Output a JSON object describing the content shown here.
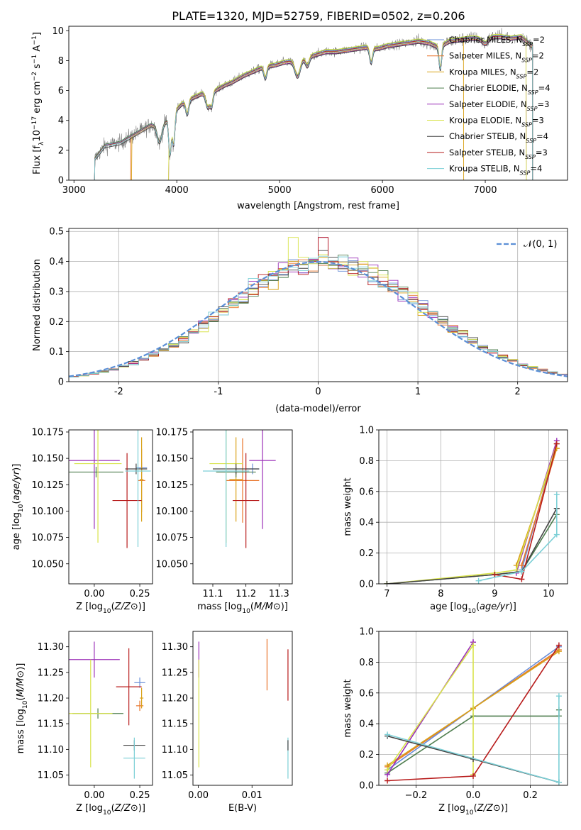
{
  "title": "PLATE=1320, MJD=52759, FIBERID=0502, z=0.206",
  "models": [
    {
      "name": "Chabrier MILES",
      "nssp": "2",
      "color": "#6a8fd8"
    },
    {
      "name": "Salpeter MILES",
      "nssp": "2",
      "color": "#e8742a"
    },
    {
      "name": "Kroupa MILES",
      "nssp": "2",
      "color": "#d9a21a"
    },
    {
      "name": "Chabrier ELODIE",
      "nssp": "4",
      "color": "#4e7d4e"
    },
    {
      "name": "Salpeter ELODIE",
      "nssp": "3",
      "color": "#9b30b8"
    },
    {
      "name": "Kroupa ELODIE",
      "nssp": "3",
      "color": "#d8e34a"
    },
    {
      "name": "Chabrier STELIB",
      "nssp": "4",
      "color": "#444444"
    },
    {
      "name": "Salpeter STELIB",
      "nssp": "3",
      "color": "#b81c1c"
    },
    {
      "name": "Kroupa STELIB",
      "nssp": "4",
      "color": "#7ccfd6"
    }
  ],
  "chart_data": [
    {
      "type": "line",
      "id": "spectrum",
      "xlabel": "wavelength [Angstrom, rest frame]",
      "ylabel_parts": [
        "Flux [f",
        "λ",
        "10",
        "−17",
        " erg cm",
        "−2",
        " s",
        "−1",
        " A",
        "−1",
        "]"
      ],
      "xlim": [
        2950,
        7800
      ],
      "ylim": [
        0,
        10.3
      ],
      "xticks": [
        3000,
        4000,
        5000,
        6000,
        7000
      ],
      "yticks": [
        0,
        2,
        4,
        6,
        8,
        10
      ],
      "legend_position": "right",
      "data_color": "#808080",
      "continuum": [
        [
          3200,
          1.4
        ],
        [
          3300,
          2.3
        ],
        [
          3450,
          2.5
        ],
        [
          3550,
          2.9
        ],
        [
          3650,
          3.3
        ],
        [
          3750,
          3.7
        ],
        [
          3850,
          3.5
        ],
        [
          3950,
          4.4
        ],
        [
          4050,
          5.1
        ],
        [
          4150,
          5.5
        ],
        [
          4250,
          5.8
        ],
        [
          4350,
          5.9
        ],
        [
          4450,
          6.3
        ],
        [
          4550,
          6.6
        ],
        [
          4650,
          7.0
        ],
        [
          4750,
          7.3
        ],
        [
          4850,
          7.6
        ],
        [
          4950,
          7.7
        ],
        [
          5050,
          7.9
        ],
        [
          5150,
          8.0
        ],
        [
          5250,
          8.2
        ],
        [
          5350,
          8.4
        ],
        [
          5450,
          8.6
        ],
        [
          5550,
          8.6
        ],
        [
          5650,
          8.7
        ],
        [
          5750,
          8.8
        ],
        [
          5850,
          8.9
        ],
        [
          5950,
          8.8
        ],
        [
          6050,
          9.0
        ],
        [
          6150,
          9.1
        ],
        [
          6250,
          9.2
        ],
        [
          6350,
          9.3
        ],
        [
          6450,
          9.2
        ],
        [
          6550,
          8.9
        ],
        [
          6650,
          9.3
        ],
        [
          6750,
          9.4
        ],
        [
          6850,
          9.5
        ],
        [
          6950,
          9.5
        ],
        [
          7050,
          9.6
        ],
        [
          7150,
          9.6
        ],
        [
          7250,
          9.5
        ],
        [
          7350,
          9.6
        ],
        [
          7450,
          9.0
        ]
      ],
      "features": [
        [
          3830,
          -1.0,
          20
        ],
        [
          3934,
          -2.6,
          12
        ],
        [
          3969,
          -2.2,
          12
        ],
        [
          4102,
          -0.9,
          14
        ],
        [
          4304,
          -1.0,
          20
        ],
        [
          4340,
          -0.8,
          12
        ],
        [
          4861,
          -0.8,
          14
        ],
        [
          5175,
          -1.1,
          26
        ],
        [
          5270,
          -0.6,
          18
        ],
        [
          5890,
          -1.0,
          14
        ],
        [
          6563,
          -1.5,
          12
        ],
        [
          7000,
          -0.4,
          30
        ]
      ]
    },
    {
      "type": "bar",
      "id": "residuals",
      "xlabel": "(data-model)/error",
      "ylabel": "Normed distribution",
      "xlim": [
        -2.5,
        2.5
      ],
      "ylim": [
        0,
        0.51
      ],
      "xticks": [
        -2,
        -1,
        0,
        1,
        2
      ],
      "yticks": [
        0,
        0.1,
        0.2,
        0.3,
        0.4,
        0.5
      ],
      "grid": true,
      "legend_position": "top-right",
      "reference_label": "N(0, 1)",
      "reference_color": "#5b8fd6",
      "bin_width": 0.1
    },
    {
      "type": "scatter",
      "id": "age-vs-metallicity",
      "xlabel": "Z [log10(Z/Z⊙)]",
      "ylabel": "age [log10(age/yr)]",
      "xlim": [
        -0.14,
        0.32
      ],
      "ylim": [
        10.031,
        10.177
      ],
      "xticks": [
        0.0,
        0.25
      ],
      "xtick_labels": [
        "0.00",
        "0.25"
      ],
      "yticks": [
        10.05,
        10.075,
        10.1,
        10.125,
        10.15,
        10.175
      ],
      "ytick_labels": [
        "10.050",
        "10.075",
        "10.100",
        "10.125",
        "10.150",
        "10.175"
      ],
      "points": [
        {
          "model": 0,
          "x": 0.26,
          "y": 10.141,
          "xerr": 0.03,
          "yerr": 0.005
        },
        {
          "model": 1,
          "x": 0.26,
          "y": 10.129,
          "xerr": 0.02,
          "yerr": 0.03
        },
        {
          "model": 2,
          "x": 0.26,
          "y": 10.13,
          "xerr": 0.01,
          "yerr": 0.04
        },
        {
          "model": 3,
          "x": 0.01,
          "y": 10.137,
          "xerr": 0.15,
          "yerr": 0.005
        },
        {
          "model": 4,
          "x": 0.0,
          "y": 10.148,
          "xerr": 0.14,
          "yerr": 0.065
        },
        {
          "model": 5,
          "x": 0.02,
          "y": 10.145,
          "xerr": 0.13,
          "yerr": 0.075
        },
        {
          "model": 6,
          "x": 0.23,
          "y": 10.14,
          "xerr": 0.06,
          "yerr": 0.005
        },
        {
          "model": 7,
          "x": 0.18,
          "y": 10.11,
          "xerr": 0.08,
          "yerr": 0.045
        },
        {
          "model": 8,
          "x": 0.24,
          "y": 10.138,
          "xerr": 0.07,
          "yerr": 0.072
        }
      ]
    },
    {
      "type": "scatter",
      "id": "age-vs-mass",
      "xlabel": "mass [log10(M/M⊙)]",
      "ylabel": "",
      "xlim": [
        11.04,
        11.34
      ],
      "ylim": [
        10.031,
        10.177
      ],
      "xticks": [
        11.1,
        11.2,
        11.3
      ],
      "xtick_labels": [
        "11.1",
        "11.2",
        "11.3"
      ],
      "yticks": [
        10.05,
        10.075,
        10.1,
        10.125,
        10.15,
        10.175
      ],
      "ytick_labels": [
        "10.050",
        "10.075",
        "10.100",
        "10.125",
        "10.150",
        "10.175"
      ],
      "points": [
        {
          "model": 0,
          "x": 11.22,
          "y": 10.14,
          "xerr": 0.02,
          "yerr": 0.005
        },
        {
          "model": 1,
          "x": 11.19,
          "y": 10.129,
          "xerr": 0.05,
          "yerr": 0.04
        },
        {
          "model": 2,
          "x": 11.17,
          "y": 10.13,
          "xerr": 0.02,
          "yerr": 0.04
        },
        {
          "model": 3,
          "x": 11.17,
          "y": 10.137,
          "xerr": 0.06,
          "yerr": 0.005
        },
        {
          "model": 4,
          "x": 11.25,
          "y": 10.148,
          "xerr": 0.04,
          "yerr": 0.065
        },
        {
          "model": 5,
          "x": 11.14,
          "y": 10.145,
          "xerr": 0.05,
          "yerr": 0.075
        },
        {
          "model": 6,
          "x": 11.17,
          "y": 10.14,
          "xerr": 0.07,
          "yerr": 0.005
        },
        {
          "model": 7,
          "x": 11.2,
          "y": 10.11,
          "xerr": 0.04,
          "yerr": 0.045
        },
        {
          "model": 8,
          "x": 11.14,
          "y": 10.138,
          "xerr": 0.07,
          "yerr": 0.072
        }
      ]
    },
    {
      "type": "line",
      "id": "weight-vs-age",
      "xlabel": "age [log10(age/yr)]",
      "ylabel": "mass weight",
      "xlim": [
        6.85,
        10.35
      ],
      "ylim": [
        0,
        1.0
      ],
      "xticks": [
        7,
        8,
        9,
        10
      ],
      "xtick_labels": [
        "7",
        "8",
        "9",
        "10"
      ],
      "yticks": [
        0,
        0.2,
        0.4,
        0.6,
        0.8,
        1.0
      ],
      "ytick_labels": [
        "0.0",
        "0.2",
        "0.4",
        "0.6",
        "0.8",
        "1.0"
      ],
      "grid": true,
      "series": [
        {
          "model": 0,
          "x": [
            9.5,
            10.15
          ],
          "y": [
            0.09,
            0.91
          ]
        },
        {
          "model": 1,
          "x": [
            9.5,
            10.15
          ],
          "y": [
            0.12,
            0.88
          ]
        },
        {
          "model": 2,
          "x": [
            9.4,
            10.15
          ],
          "y": [
            0.12,
            0.88
          ]
        },
        {
          "model": 3,
          "x": [
            7.0,
            9.0,
            9.5,
            10.15,
            10.15
          ],
          "y": [
            0.0,
            0.06,
            0.08,
            0.45,
            0.49
          ]
        },
        {
          "model": 4,
          "x": [
            9.4,
            10.15
          ],
          "y": [
            0.07,
            0.93
          ]
        },
        {
          "model": 5,
          "x": [
            7.0,
            9.0,
            9.4,
            10.15
          ],
          "y": [
            0.0,
            0.07,
            0.09,
            0.91
          ]
        },
        {
          "model": 6,
          "x": [
            7.0,
            9.0,
            9.5,
            10.15
          ],
          "y": [
            0.0,
            0.06,
            0.08,
            0.49
          ]
        },
        {
          "model": 7,
          "x": [
            9.0,
            9.5,
            10.15
          ],
          "y": [
            0.06,
            0.03,
            0.91
          ]
        },
        {
          "model": 8,
          "x": [
            8.7,
            9.5,
            10.15,
            10.15
          ],
          "y": [
            0.02,
            0.08,
            0.32,
            0.58
          ]
        }
      ]
    },
    {
      "type": "scatter",
      "id": "mass-vs-metallicity",
      "xlabel": "Z [log10(Z/Z⊙)]",
      "ylabel": "mass [log10(M/M⊙)]",
      "xlim": [
        -0.14,
        0.32
      ],
      "ylim": [
        11.03,
        11.33
      ],
      "xticks": [
        0.0,
        0.25
      ],
      "xtick_labels": [
        "0.00",
        "0.25"
      ],
      "yticks": [
        11.05,
        11.1,
        11.15,
        11.2,
        11.25,
        11.3
      ],
      "ytick_labels": [
        "11.05",
        "11.10",
        "11.15",
        "11.20",
        "11.25",
        "11.30"
      ],
      "points": [
        {
          "model": 0,
          "x": 0.25,
          "y": 11.23,
          "xerr": 0.03,
          "yerr": 0.01
        },
        {
          "model": 1,
          "x": 0.25,
          "y": 11.185,
          "xerr": 0.02,
          "yerr": 0.01
        },
        {
          "model": 2,
          "x": 0.26,
          "y": 11.2,
          "xerr": 0.01,
          "yerr": 0.02
        },
        {
          "model": 3,
          "x": 0.02,
          "y": 11.17,
          "xerr": 0.14,
          "yerr": 0.01
        },
        {
          "model": 4,
          "x": 0.0,
          "y": 11.275,
          "xerr": 0.14,
          "yerr": 0.035
        },
        {
          "model": 5,
          "x": -0.02,
          "y": 11.17,
          "xerr": 0.12,
          "yerr": 0.105
        },
        {
          "model": 6,
          "x": 0.22,
          "y": 11.108,
          "xerr": 0.06,
          "yerr": 0.01
        },
        {
          "model": 7,
          "x": 0.19,
          "y": 11.222,
          "xerr": 0.07,
          "yerr": 0.075
        },
        {
          "model": 8,
          "x": 0.22,
          "y": 11.083,
          "xerr": 0.06,
          "yerr": 0.04
        }
      ]
    },
    {
      "type": "scatter",
      "id": "mass-vs-extinction",
      "xlabel": "E(B-V)",
      "ylabel": "",
      "xlim": [
        -0.001,
        0.0175
      ],
      "ylim": [
        11.03,
        11.33
      ],
      "xticks": [
        0.0,
        0.01
      ],
      "xtick_labels": [
        "0.00",
        "0.01"
      ],
      "yticks": [
        11.05,
        11.1,
        11.15,
        11.2,
        11.25,
        11.3
      ],
      "ytick_labels": [
        "11.05",
        "11.10",
        "11.15",
        "11.20",
        "11.25",
        "11.30"
      ],
      "points": [
        {
          "model": 4,
          "x": 0.0001,
          "y": 11.275,
          "xerr": 0,
          "yerr": 0.035
        },
        {
          "model": 5,
          "x": 0.0001,
          "y": 11.17,
          "xerr": 0,
          "yerr": 0.105
        },
        {
          "model": 1,
          "x": 0.0128,
          "y": 11.265,
          "xerr": 0,
          "yerr": 0.05
        },
        {
          "model": 7,
          "x": 0.0167,
          "y": 11.245,
          "xerr": 0,
          "yerr": 0.05
        },
        {
          "model": 8,
          "x": 0.0167,
          "y": 11.083,
          "xerr": 0,
          "yerr": 0.04
        },
        {
          "model": 6,
          "x": 0.0167,
          "y": 11.108,
          "xerr": 0,
          "yerr": 0.01
        }
      ]
    },
    {
      "type": "line",
      "id": "weight-vs-metallicity",
      "xlabel": "Z [log10(Z/Z⊙)]",
      "ylabel": "mass weight",
      "xlim": [
        -0.33,
        0.33
      ],
      "ylim": [
        0,
        1.0
      ],
      "xticks": [
        -0.2,
        0.0,
        0.2
      ],
      "xtick_labels": [
        "−0.2",
        "0.0",
        "0.2"
      ],
      "yticks": [
        0,
        0.2,
        0.4,
        0.6,
        0.8,
        1.0
      ],
      "ytick_labels": [
        "0.0",
        "0.2",
        "0.4",
        "0.6",
        "0.8",
        "1.0"
      ],
      "grid": true,
      "series": [
        {
          "model": 0,
          "x": [
            -0.3,
            0.0,
            0.3
          ],
          "y": [
            0.1,
            0.5,
            0.9
          ]
        },
        {
          "model": 1,
          "x": [
            -0.3,
            0.0,
            0.3
          ],
          "y": [
            0.12,
            0.5,
            0.88
          ]
        },
        {
          "model": 2,
          "x": [
            -0.3,
            0.0,
            0.3
          ],
          "y": [
            0.13,
            0.5,
            0.87
          ]
        },
        {
          "model": 3,
          "x": [
            -0.3,
            0.0,
            0.3,
            0.3
          ],
          "y": [
            0.08,
            0.45,
            0.45,
            0.49
          ]
        },
        {
          "model": 4,
          "x": [
            -0.3,
            0.0,
            0.0
          ],
          "y": [
            0.07,
            0.93,
            0.93
          ]
        },
        {
          "model": 5,
          "x": [
            -0.3,
            0.0,
            0.0
          ],
          "y": [
            0.1,
            0.91,
            0.07
          ]
        },
        {
          "model": 6,
          "x": [
            -0.3,
            0.0,
            0.3
          ],
          "y": [
            0.32,
            0.17,
            0.02
          ]
        },
        {
          "model": 7,
          "x": [
            -0.3,
            0.0,
            0.3
          ],
          "y": [
            0.03,
            0.06,
            0.91
          ]
        },
        {
          "model": 8,
          "x": [
            -0.3,
            0.3,
            0.3
          ],
          "y": [
            0.33,
            0.02,
            0.58
          ]
        }
      ]
    }
  ]
}
